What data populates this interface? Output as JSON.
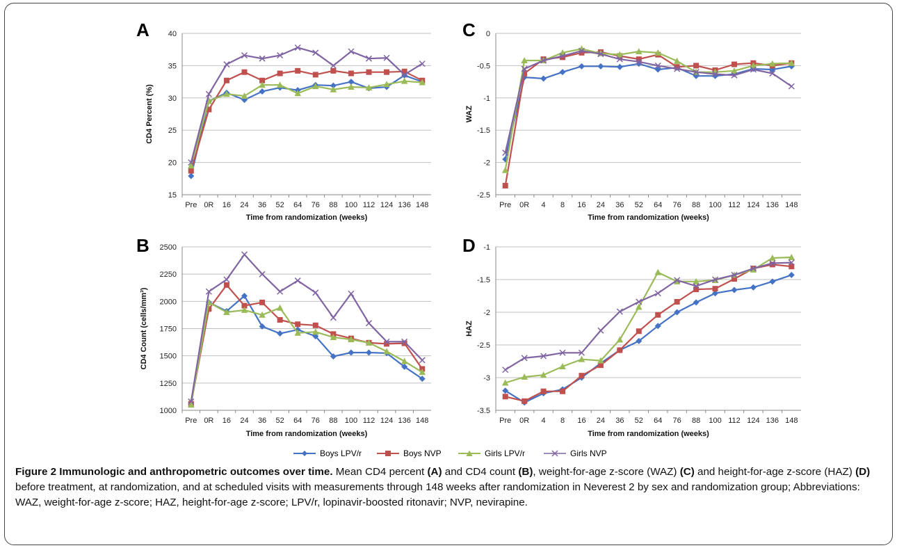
{
  "legend": [
    {
      "name": "Boys LPV/r",
      "color": "#4472C4",
      "marker": "diamond"
    },
    {
      "name": "Boys NVP",
      "color": "#C0504D",
      "marker": "square"
    },
    {
      "name": "Girls LPV/r",
      "color": "#9BBB59",
      "marker": "triangle"
    },
    {
      "name": "Girls NVP",
      "color": "#8064A2",
      "marker": "x"
    }
  ],
  "caption": {
    "title": "Figure 2 Immunologic and anthropometric outcomes over time.",
    "p1": " Mean CD4 percent ",
    "a": "(A)",
    "p2": " and CD4 count ",
    "b": "(B)",
    "p3": ", weight-for-age z-score (WAZ) ",
    "c": "(C)",
    "p4": " and height-for-age z-score (HAZ) ",
    "d": "(D)",
    "p5": " before treatment, at randomization, and at scheduled visits with measurements through 148 weeks after randomization in Neverest 2 by sex and randomization group; Abbreviations: WAZ, weight-for-age z-score; HAZ, height-for-age z-score; LPV/r, lopinavir-boosted ritonavir; NVP, nevirapine."
  },
  "chart_data": [
    {
      "panel": "A",
      "type": "line",
      "xlabel": "Time from randomization (weeks)",
      "ylabel": "CD4 Percent (%)",
      "ylim": [
        15,
        40
      ],
      "yticks": [
        15,
        20,
        25,
        30,
        35,
        40
      ],
      "categories": [
        "Pre",
        "0R",
        "16",
        "24",
        "36",
        "52",
        "64",
        "76",
        "88",
        "100",
        "112",
        "124",
        "136",
        "148"
      ],
      "series": [
        {
          "name": "Boys LPV/r",
          "values": [
            17.9,
            29.5,
            30.8,
            29.7,
            31.0,
            31.6,
            31.2,
            32.0,
            31.9,
            32.5,
            31.5,
            31.7,
            33.5,
            32.5
          ]
        },
        {
          "name": "Boys NVP",
          "values": [
            18.7,
            28.2,
            32.7,
            34.0,
            32.7,
            33.8,
            34.2,
            33.6,
            34.2,
            33.8,
            34.0,
            34.0,
            34.1,
            32.7
          ]
        },
        {
          "name": "Girls LPV/r",
          "values": [
            19.5,
            29.5,
            30.6,
            30.3,
            32.0,
            32.0,
            30.7,
            31.8,
            31.3,
            31.7,
            31.6,
            32.1,
            32.6,
            32.4
          ]
        },
        {
          "name": "Girls NVP",
          "values": [
            20.0,
            30.6,
            35.2,
            36.6,
            36.1,
            36.6,
            37.8,
            37.0,
            35.0,
            37.2,
            36.1,
            36.2,
            33.6,
            35.3
          ]
        }
      ]
    },
    {
      "panel": "B",
      "type": "line",
      "xlabel": "Time from randomization (weeks)",
      "ylabel": "CD4 Count (cells/mm³)",
      "ylim": [
        1000,
        2500
      ],
      "yticks": [
        1000,
        1250,
        1500,
        1750,
        2000,
        2250,
        2500
      ],
      "categories": [
        "Pre",
        "0R",
        "16",
        "24",
        "36",
        "52",
        "64",
        "76",
        "88",
        "100",
        "112",
        "124",
        "136",
        "148"
      ],
      "series": [
        {
          "name": "Boys LPV/r",
          "values": [
            1070,
            1990,
            1910,
            2050,
            1770,
            1705,
            1740,
            1680,
            1495,
            1530,
            1530,
            1525,
            1400,
            1290
          ]
        },
        {
          "name": "Boys NVP",
          "values": [
            1060,
            1930,
            2150,
            1960,
            1990,
            1830,
            1790,
            1780,
            1700,
            1660,
            1620,
            1610,
            1615,
            1380
          ]
        },
        {
          "name": "Girls LPV/r",
          "values": [
            1050,
            1990,
            1900,
            1920,
            1875,
            1940,
            1710,
            1720,
            1670,
            1650,
            1620,
            1540,
            1450,
            1350
          ]
        },
        {
          "name": "Girls NVP",
          "values": [
            1080,
            2090,
            2200,
            2430,
            2250,
            2090,
            2190,
            2080,
            1850,
            2070,
            1800,
            1630,
            1630,
            1460
          ]
        }
      ]
    },
    {
      "panel": "C",
      "type": "line",
      "xlabel": "Time from randomization (weeks)",
      "ylabel": "WAZ",
      "ylim": [
        -2.5,
        0
      ],
      "yticks": [
        -2.5,
        -2,
        -1.5,
        -1,
        -0.5,
        0
      ],
      "categories": [
        "Pre",
        "0R",
        "4",
        "8",
        "16",
        "24",
        "36",
        "52",
        "64",
        "76",
        "88",
        "100",
        "112",
        "124",
        "136",
        "148"
      ],
      "series": [
        {
          "name": "Boys LPV/r",
          "values": [
            -1.95,
            -0.68,
            -0.7,
            -0.6,
            -0.51,
            -0.51,
            -0.52,
            -0.47,
            -0.56,
            -0.53,
            -0.66,
            -0.66,
            -0.63,
            -0.55,
            -0.56,
            -0.51
          ]
        },
        {
          "name": "Boys NVP",
          "values": [
            -2.36,
            -0.62,
            -0.4,
            -0.37,
            -0.3,
            -0.29,
            -0.35,
            -0.4,
            -0.33,
            -0.52,
            -0.5,
            -0.57,
            -0.48,
            -0.46,
            -0.5,
            -0.46
          ]
        },
        {
          "name": "Girls LPV/r",
          "values": [
            -2.12,
            -0.42,
            -0.42,
            -0.3,
            -0.24,
            -0.31,
            -0.33,
            -0.28,
            -0.3,
            -0.43,
            -0.6,
            -0.6,
            -0.58,
            -0.5,
            -0.47,
            -0.46
          ]
        },
        {
          "name": "Girls NVP",
          "values": [
            -1.85,
            -0.55,
            -0.42,
            -0.35,
            -0.27,
            -0.32,
            -0.4,
            -0.44,
            -0.5,
            -0.55,
            -0.6,
            -0.63,
            -0.65,
            -0.56,
            -0.62,
            -0.82
          ]
        }
      ]
    },
    {
      "panel": "D",
      "type": "line",
      "xlabel": "Time from randomization (weeks)",
      "ylabel": "HAZ",
      "ylim": [
        -3.5,
        -1
      ],
      "yticks": [
        -3.5,
        -3,
        -2.5,
        -2,
        -1.5,
        -1
      ],
      "categories": [
        "Pre",
        "0R",
        "4",
        "8",
        "16",
        "24",
        "36",
        "52",
        "64",
        "76",
        "88",
        "100",
        "112",
        "124",
        "136",
        "148"
      ],
      "series": [
        {
          "name": "Boys LPV/r",
          "values": [
            -3.2,
            -3.38,
            -3.24,
            -3.18,
            -3.0,
            -2.78,
            -2.58,
            -2.44,
            -2.21,
            -2.0,
            -1.85,
            -1.71,
            -1.66,
            -1.62,
            -1.53,
            -1.43
          ]
        },
        {
          "name": "Boys NVP",
          "values": [
            -3.29,
            -3.36,
            -3.21,
            -3.21,
            -2.97,
            -2.81,
            -2.58,
            -2.29,
            -2.04,
            -1.84,
            -1.65,
            -1.64,
            -1.49,
            -1.33,
            -1.27,
            -1.3
          ]
        },
        {
          "name": "Girls LPV/r",
          "values": [
            -3.08,
            -2.99,
            -2.96,
            -2.83,
            -2.72,
            -2.74,
            -2.42,
            -1.92,
            -1.39,
            -1.53,
            -1.53,
            -1.51,
            -1.43,
            -1.35,
            -1.17,
            -1.16
          ]
        },
        {
          "name": "Girls NVP",
          "values": [
            -2.88,
            -2.7,
            -2.67,
            -2.62,
            -2.62,
            -2.28,
            -1.99,
            -1.84,
            -1.71,
            -1.51,
            -1.6,
            -1.5,
            -1.43,
            -1.33,
            -1.25,
            -1.24
          ]
        }
      ]
    }
  ]
}
